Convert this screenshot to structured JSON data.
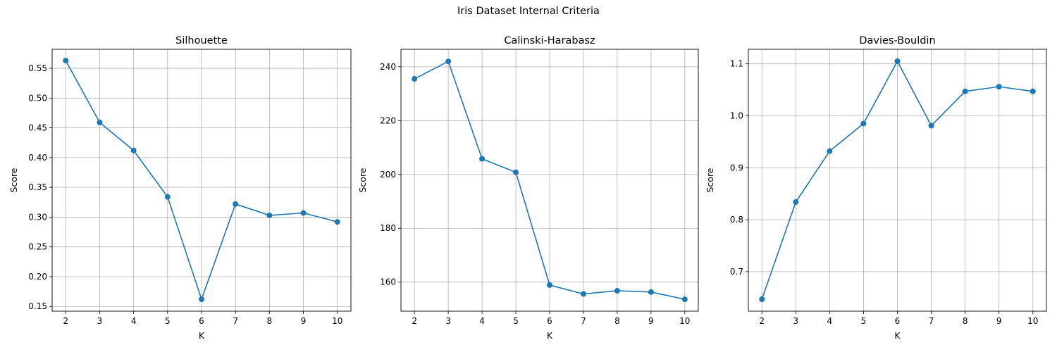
{
  "figure": {
    "title": "Iris Dataset Internal Criteria"
  },
  "colors": {
    "line": "#1f77b4",
    "grid": "#b0b0b0",
    "axis": "#000000"
  },
  "chart_data": [
    {
      "type": "line",
      "title": "Silhouette",
      "xlabel": "K",
      "ylabel": "Score",
      "grid": true,
      "x": [
        2,
        3,
        4,
        5,
        6,
        7,
        8,
        9,
        10
      ],
      "xticks": [
        "2",
        "3",
        "4",
        "5",
        "6",
        "7",
        "8",
        "9",
        "10"
      ],
      "xlim": [
        1.6,
        10.4
      ],
      "ylim": [
        0.142,
        0.582
      ],
      "yticks": [
        "0.15",
        "0.20",
        "0.25",
        "0.30",
        "0.35",
        "0.40",
        "0.45",
        "0.50",
        "0.55"
      ],
      "series": [
        {
          "values": [
            0.563,
            0.459,
            0.412,
            0.334,
            0.162,
            0.322,
            0.303,
            0.307,
            0.292
          ]
        }
      ]
    },
    {
      "type": "line",
      "title": "Calinski-Harabasz",
      "xlabel": "K",
      "ylabel": "Score",
      "grid": true,
      "x": [
        2,
        3,
        4,
        5,
        6,
        7,
        8,
        9,
        10
      ],
      "xticks": [
        "2",
        "3",
        "4",
        "5",
        "6",
        "7",
        "8",
        "9",
        "10"
      ],
      "xlim": [
        1.6,
        10.4
      ],
      "ylim": [
        149.2,
        246.5
      ],
      "yticks": [
        "160",
        "180",
        "200",
        "220",
        "240"
      ],
      "series": [
        {
          "values": [
            235.5,
            242.0,
            205.8,
            200.8,
            158.9,
            155.6,
            156.8,
            156.3,
            153.6
          ]
        }
      ]
    },
    {
      "type": "line",
      "title": "Davies-Bouldin",
      "xlabel": "K",
      "ylabel": "Score",
      "grid": true,
      "x": [
        2,
        3,
        4,
        5,
        6,
        7,
        8,
        9,
        10
      ],
      "xticks": [
        "2",
        "3",
        "4",
        "5",
        "6",
        "7",
        "8",
        "9",
        "10"
      ],
      "xlim": [
        1.6,
        10.4
      ],
      "ylim": [
        0.624,
        1.128
      ],
      "yticks": [
        "0.7",
        "0.8",
        "0.9",
        "1.0",
        "1.1"
      ],
      "series": [
        {
          "values": [
            0.647,
            0.834,
            0.932,
            0.985,
            1.105,
            0.981,
            1.047,
            1.056,
            1.047
          ]
        }
      ]
    }
  ]
}
